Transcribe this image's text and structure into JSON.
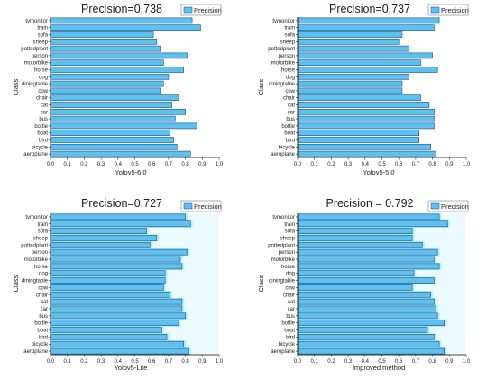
{
  "colors": {
    "bar_fill": "#5fbfef",
    "bar_stroke": "#1a4f8a",
    "axis": "#000000",
    "glow": "#8fe9f4"
  },
  "chart_data": [
    {
      "type": "bar",
      "orientation": "horizontal",
      "title": "Precision=0.738",
      "xlabel": "Yolov5-6.0",
      "ylabel": "Class",
      "legend": "Precision",
      "legend_position": "top-right",
      "xlim": [
        0.0,
        1.0
      ],
      "xticks": [
        "0.0",
        "0.1",
        "0.2",
        "0.3",
        "0.4",
        "0.5",
        "0.6",
        "0.7",
        "0.8",
        "0.9",
        "1.0"
      ],
      "categories": [
        "tvmonitor",
        "train",
        "sofa",
        "sheep",
        "pottedplant",
        "person",
        "motorbike",
        "horse",
        "dog",
        "diningtable",
        "cow",
        "chair",
        "cat",
        "car",
        "bus",
        "bottle",
        "boat",
        "bird",
        "bicycle",
        "aeroplane"
      ],
      "values": [
        0.84,
        0.89,
        0.61,
        0.63,
        0.65,
        0.81,
        0.67,
        0.79,
        0.7,
        0.67,
        0.65,
        0.76,
        0.72,
        0.8,
        0.74,
        0.87,
        0.71,
        0.73,
        0.75,
        0.83
      ]
    },
    {
      "type": "bar",
      "orientation": "horizontal",
      "title": "Precision=0.737",
      "xlabel": "Yolov5-5.0",
      "ylabel": "Class",
      "legend": "Precision",
      "legend_position": "top-right",
      "xlim": [
        0.0,
        1.0
      ],
      "xticks": [
        "0.0",
        "0.1",
        "0.2",
        "0.3",
        "0.4",
        "0.5",
        "0.6",
        "0.7",
        "0.8",
        "0.9",
        "1.0"
      ],
      "categories": [
        "tvmonitor",
        "train",
        "sofa",
        "sheep",
        "pottedplant",
        "person",
        "motorbike",
        "horse",
        "dog",
        "diningtable",
        "cow",
        "chair",
        "cat",
        "car",
        "bus",
        "bottle",
        "boat",
        "bird",
        "bicycle",
        "aeroplane"
      ],
      "values": [
        0.84,
        0.81,
        0.62,
        0.6,
        0.66,
        0.8,
        0.73,
        0.83,
        0.66,
        0.62,
        0.62,
        0.73,
        0.78,
        0.81,
        0.81,
        0.81,
        0.72,
        0.72,
        0.79,
        0.82
      ]
    },
    {
      "type": "bar",
      "orientation": "horizontal",
      "title": "Precision=0.727",
      "xlabel": "Yolov5-Lite",
      "ylabel": "Class",
      "legend": "Precision",
      "legend_position": "top-right",
      "xlim": [
        0.0,
        1.0
      ],
      "xticks": [
        "0.0",
        "0.1",
        "0.2",
        "0.3",
        "0.4",
        "0.5",
        "0.6",
        "0.7",
        "0.8",
        "0.9",
        "1.0"
      ],
      "categories": [
        "tvmonitor",
        "train",
        "sofa",
        "sheep",
        "pottedplant",
        "person",
        "motorbike",
        "horse",
        "dog",
        "diningtable",
        "cow",
        "chair",
        "cat",
        "car",
        "bus",
        "bottle",
        "boat",
        "bird",
        "bicycle",
        "aeroplane"
      ],
      "values": [
        0.8,
        0.83,
        0.57,
        0.63,
        0.59,
        0.81,
        0.77,
        0.78,
        0.68,
        0.68,
        0.67,
        0.71,
        0.78,
        0.78,
        0.8,
        0.76,
        0.66,
        0.69,
        0.79,
        0.82
      ]
    },
    {
      "type": "bar",
      "orientation": "horizontal",
      "title": "Precision = 0.792",
      "xlabel": "Improved method",
      "ylabel": "Class",
      "legend": "Precision",
      "legend_position": "top-right",
      "xlim": [
        0.0,
        1.0
      ],
      "xticks": [
        "0.0",
        "0.1",
        "0.2",
        "0.3",
        "0.4",
        "0.5",
        "0.6",
        "0.7",
        "0.8",
        "0.9",
        "1.0"
      ],
      "categories": [
        "tvmonitor",
        "train",
        "sofa",
        "sheep",
        "pottedplant",
        "person",
        "motorbike",
        "horse",
        "dog",
        "diningtable",
        "cow",
        "chair",
        "cat",
        "car",
        "bus",
        "bottle",
        "boat",
        "bird",
        "bicycle",
        "aeroplane"
      ],
      "values": [
        0.84,
        0.89,
        0.68,
        0.68,
        0.74,
        0.83,
        0.81,
        0.84,
        0.69,
        0.81,
        0.68,
        0.79,
        0.81,
        0.82,
        0.83,
        0.87,
        0.77,
        0.81,
        0.84,
        0.87
      ]
    }
  ]
}
